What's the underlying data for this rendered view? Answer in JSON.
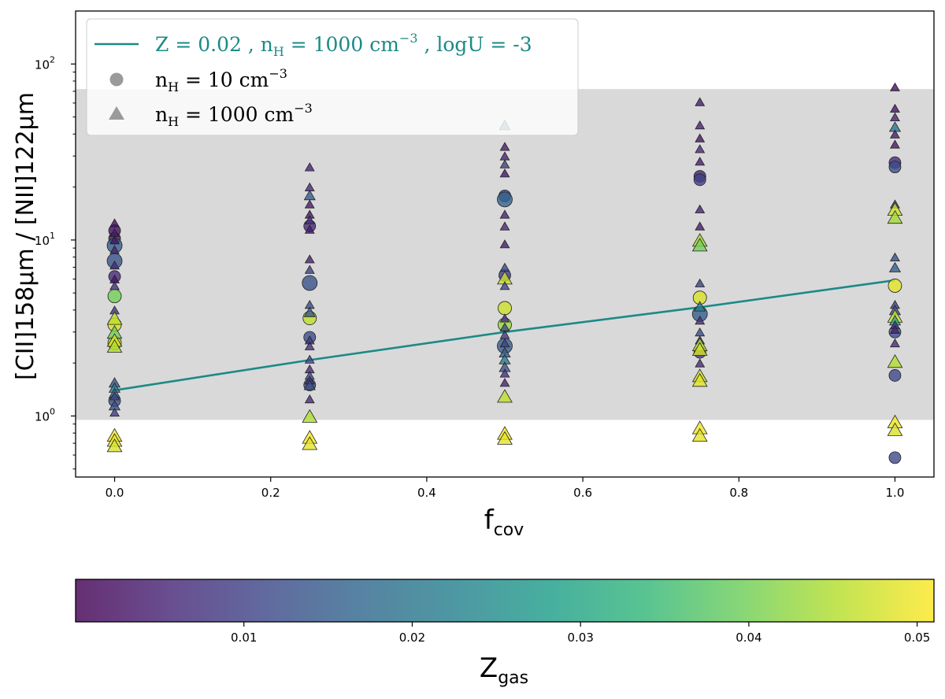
{
  "chart_data": [
    {
      "type": "scatter",
      "title": "",
      "xlabel": "f",
      "xlabel_sub": "cov",
      "ylabel": "[CII]158μm / [NII]122μm",
      "xlim": [
        -0.05,
        1.05
      ],
      "ylim": [
        0.45,
        200
      ],
      "yscale": "log",
      "x_ticks": [
        0.0,
        0.2,
        0.4,
        0.6,
        0.8,
        1.0
      ],
      "x_tick_labels": [
        "0.0",
        "0.2",
        "0.4",
        "0.6",
        "0.8",
        "1.0"
      ],
      "y_ticks": [
        1,
        10,
        100
      ],
      "y_tick_labels": [
        "10",
        "10",
        "10"
      ],
      "y_tick_exponents": [
        "0",
        "1",
        "2"
      ],
      "shaded_band": {
        "y_min": 0.95,
        "y_max": 72,
        "color": "#d9d9d9"
      },
      "legend_position": "upper-left",
      "legend": [
        {
          "marker": "line",
          "color": "#1b8a87",
          "text": "Z = 0.02 , n",
          "sub": "H",
          "mid": " = 1000 cm",
          "sup": "−3",
          "tail": " , logU = -3"
        },
        {
          "marker": "circle",
          "color": "#9a9a9a",
          "text": "n",
          "sub": "H",
          "mid": " = 10 cm",
          "sup": "−3",
          "tail": ""
        },
        {
          "marker": "triangle",
          "color": "#9a9a9a",
          "text": "n",
          "sub": "H",
          "mid": " = 1000 cm",
          "sup": "−3",
          "tail": ""
        }
      ],
      "reference_line": {
        "name": "Z = 0.02 , nH = 1000 cm−3 , logU = -3",
        "color": "#1b8a87",
        "x": [
          0.0,
          0.25,
          0.5,
          0.75,
          1.0
        ],
        "y": [
          1.4,
          2.08,
          3.0,
          4.15,
          5.9
        ]
      },
      "series": [
        {
          "marker": "circle",
          "points": [
            {
              "x": 0.0,
              "y": 11.3,
              "z": 0.002
            },
            {
              "x": 0.0,
              "y": 10.2,
              "z": 0.004
            },
            {
              "x": 0.0,
              "y": 9.3,
              "z": 0.015
            },
            {
              "x": 0.0,
              "y": 7.6,
              "z": 0.013
            },
            {
              "x": 0.0,
              "y": 6.2,
              "z": 0.006
            },
            {
              "x": 0.0,
              "y": 4.8,
              "z": 0.04
            },
            {
              "x": 0.0,
              "y": 3.3,
              "z": 0.048
            },
            {
              "x": 0.0,
              "y": 2.6,
              "z": 0.046
            },
            {
              "x": 0.0,
              "y": 1.22,
              "z": 0.012
            },
            {
              "x": 0.25,
              "y": 12.0,
              "z": 0.006
            },
            {
              "x": 0.25,
              "y": 5.7,
              "z": 0.013
            },
            {
              "x": 0.25,
              "y": 3.6,
              "z": 0.046
            },
            {
              "x": 0.25,
              "y": 2.8,
              "z": 0.012
            },
            {
              "x": 0.25,
              "y": 1.5,
              "z": 0.01
            },
            {
              "x": 0.5,
              "y": 17.8,
              "z": 0.01
            },
            {
              "x": 0.5,
              "y": 17.0,
              "z": 0.016
            },
            {
              "x": 0.5,
              "y": 4.1,
              "z": 0.047
            },
            {
              "x": 0.5,
              "y": 3.3,
              "z": 0.043
            },
            {
              "x": 0.5,
              "y": 2.5,
              "z": 0.015
            },
            {
              "x": 0.5,
              "y": 6.3,
              "z": 0.009
            },
            {
              "x": 0.75,
              "y": 23.0,
              "z": 0.005
            },
            {
              "x": 0.75,
              "y": 22.0,
              "z": 0.01
            },
            {
              "x": 0.75,
              "y": 4.7,
              "z": 0.048
            },
            {
              "x": 0.75,
              "y": 3.8,
              "z": 0.015
            },
            {
              "x": 0.75,
              "y": 2.3,
              "z": 0.009
            },
            {
              "x": 1.0,
              "y": 27.5,
              "z": 0.006
            },
            {
              "x": 1.0,
              "y": 26.0,
              "z": 0.012
            },
            {
              "x": 1.0,
              "y": 5.5,
              "z": 0.049
            },
            {
              "x": 1.0,
              "y": 3.0,
              "z": 0.012
            },
            {
              "x": 1.0,
              "y": 1.7,
              "z": 0.011
            },
            {
              "x": 1.0,
              "y": 0.58,
              "z": 0.011
            }
          ]
        },
        {
          "marker": "triangle",
          "points": [
            {
              "x": 0.0,
              "y": 12.5,
              "z": 0.002
            },
            {
              "x": 0.0,
              "y": 11.0,
              "z": 0.004
            },
            {
              "x": 0.0,
              "y": 10.0,
              "z": 0.003
            },
            {
              "x": 0.0,
              "y": 8.8,
              "z": 0.005
            },
            {
              "x": 0.0,
              "y": 7.2,
              "z": 0.006
            },
            {
              "x": 0.0,
              "y": 6.0,
              "z": 0.003
            },
            {
              "x": 0.0,
              "y": 5.5,
              "z": 0.007
            },
            {
              "x": 0.0,
              "y": 4.0,
              "z": 0.008
            },
            {
              "x": 0.0,
              "y": 3.6,
              "z": 0.046
            },
            {
              "x": 0.0,
              "y": 3.0,
              "z": 0.04
            },
            {
              "x": 0.0,
              "y": 2.7,
              "z": 0.048
            },
            {
              "x": 0.0,
              "y": 2.5,
              "z": 0.045
            },
            {
              "x": 0.0,
              "y": 1.55,
              "z": 0.014
            },
            {
              "x": 0.0,
              "y": 1.45,
              "z": 0.02
            },
            {
              "x": 0.0,
              "y": 1.35,
              "z": 0.018
            },
            {
              "x": 0.0,
              "y": 1.3,
              "z": 0.011
            },
            {
              "x": 0.0,
              "y": 1.15,
              "z": 0.013
            },
            {
              "x": 0.0,
              "y": 1.05,
              "z": 0.009
            },
            {
              "x": 0.0,
              "y": 0.78,
              "z": 0.05
            },
            {
              "x": 0.0,
              "y": 0.73,
              "z": 0.049
            },
            {
              "x": 0.0,
              "y": 0.68,
              "z": 0.048
            },
            {
              "x": 0.25,
              "y": 26.0,
              "z": 0.005
            },
            {
              "x": 0.25,
              "y": 20.0,
              "z": 0.006
            },
            {
              "x": 0.25,
              "y": 18.0,
              "z": 0.015
            },
            {
              "x": 0.25,
              "y": 16.0,
              "z": 0.004
            },
            {
              "x": 0.25,
              "y": 14.0,
              "z": 0.003
            },
            {
              "x": 0.25,
              "y": 13.0,
              "z": 0.007
            },
            {
              "x": 0.25,
              "y": 11.5,
              "z": 0.004
            },
            {
              "x": 0.25,
              "y": 7.8,
              "z": 0.005
            },
            {
              "x": 0.25,
              "y": 6.8,
              "z": 0.01
            },
            {
              "x": 0.25,
              "y": 4.3,
              "z": 0.012
            },
            {
              "x": 0.25,
              "y": 3.9,
              "z": 0.014
            },
            {
              "x": 0.25,
              "y": 2.7,
              "z": 0.009
            },
            {
              "x": 0.25,
              "y": 2.5,
              "z": 0.007
            },
            {
              "x": 0.25,
              "y": 2.1,
              "z": 0.011
            },
            {
              "x": 0.25,
              "y": 1.85,
              "z": 0.006
            },
            {
              "x": 0.25,
              "y": 1.7,
              "z": 0.012
            },
            {
              "x": 0.25,
              "y": 1.6,
              "z": 0.008
            },
            {
              "x": 0.25,
              "y": 1.5,
              "z": 0.013
            },
            {
              "x": 0.25,
              "y": 1.25,
              "z": 0.006
            },
            {
              "x": 0.25,
              "y": 1.0,
              "z": 0.045
            },
            {
              "x": 0.25,
              "y": 0.76,
              "z": 0.05
            },
            {
              "x": 0.25,
              "y": 0.7,
              "z": 0.049
            },
            {
              "x": 0.5,
              "y": 45.0,
              "z": 0.018
            },
            {
              "x": 0.5,
              "y": 34.0,
              "z": 0.004
            },
            {
              "x": 0.5,
              "y": 30.0,
              "z": 0.005
            },
            {
              "x": 0.5,
              "y": 27.0,
              "z": 0.01
            },
            {
              "x": 0.5,
              "y": 24.0,
              "z": 0.003
            },
            {
              "x": 0.5,
              "y": 14.0,
              "z": 0.005
            },
            {
              "x": 0.5,
              "y": 12.0,
              "z": 0.006
            },
            {
              "x": 0.5,
              "y": 9.5,
              "z": 0.004
            },
            {
              "x": 0.5,
              "y": 7.0,
              "z": 0.012
            },
            {
              "x": 0.5,
              "y": 6.1,
              "z": 0.047
            },
            {
              "x": 0.5,
              "y": 5.5,
              "z": 0.011
            },
            {
              "x": 0.5,
              "y": 3.6,
              "z": 0.006
            },
            {
              "x": 0.5,
              "y": 3.2,
              "z": 0.012
            },
            {
              "x": 0.5,
              "y": 2.9,
              "z": 0.008
            },
            {
              "x": 0.5,
              "y": 2.6,
              "z": 0.01
            },
            {
              "x": 0.5,
              "y": 2.3,
              "z": 0.015
            },
            {
              "x": 0.5,
              "y": 2.1,
              "z": 0.021
            },
            {
              "x": 0.5,
              "y": 1.9,
              "z": 0.013
            },
            {
              "x": 0.5,
              "y": 1.75,
              "z": 0.007
            },
            {
              "x": 0.5,
              "y": 1.55,
              "z": 0.005
            },
            {
              "x": 0.5,
              "y": 1.3,
              "z": 0.046
            },
            {
              "x": 0.5,
              "y": 0.8,
              "z": 0.05
            },
            {
              "x": 0.5,
              "y": 0.75,
              "z": 0.049
            },
            {
              "x": 0.75,
              "y": 61.0,
              "z": 0.004
            },
            {
              "x": 0.75,
              "y": 45.0,
              "z": 0.005
            },
            {
              "x": 0.75,
              "y": 38.0,
              "z": 0.003
            },
            {
              "x": 0.75,
              "y": 33.0,
              "z": 0.006
            },
            {
              "x": 0.75,
              "y": 28.0,
              "z": 0.004
            },
            {
              "x": 0.75,
              "y": 15.0,
              "z": 0.005
            },
            {
              "x": 0.75,
              "y": 12.0,
              "z": 0.004
            },
            {
              "x": 0.75,
              "y": 10.0,
              "z": 0.045
            },
            {
              "x": 0.75,
              "y": 9.4,
              "z": 0.04
            },
            {
              "x": 0.75,
              "y": 5.7,
              "z": 0.01
            },
            {
              "x": 0.75,
              "y": 4.2,
              "z": 0.022
            },
            {
              "x": 0.75,
              "y": 3.5,
              "z": 0.007
            },
            {
              "x": 0.75,
              "y": 3.0,
              "z": 0.012
            },
            {
              "x": 0.75,
              "y": 2.7,
              "z": 0.008
            },
            {
              "x": 0.75,
              "y": 2.55,
              "z": 0.045
            },
            {
              "x": 0.75,
              "y": 2.4,
              "z": 0.048
            },
            {
              "x": 0.75,
              "y": 2.0,
              "z": 0.006
            },
            {
              "x": 0.75,
              "y": 1.7,
              "z": 0.047
            },
            {
              "x": 0.75,
              "y": 1.6,
              "z": 0.049
            },
            {
              "x": 0.75,
              "y": 0.86,
              "z": 0.05
            },
            {
              "x": 0.75,
              "y": 0.78,
              "z": 0.049
            },
            {
              "x": 1.0,
              "y": 74.0,
              "z": 0.002
            },
            {
              "x": 1.0,
              "y": 56.0,
              "z": 0.003
            },
            {
              "x": 1.0,
              "y": 50.0,
              "z": 0.005
            },
            {
              "x": 1.0,
              "y": 44.0,
              "z": 0.02
            },
            {
              "x": 1.0,
              "y": 40.0,
              "z": 0.004
            },
            {
              "x": 1.0,
              "y": 35.0,
              "z": 0.003
            },
            {
              "x": 1.0,
              "y": 16.0,
              "z": 0.006
            },
            {
              "x": 1.0,
              "y": 15.0,
              "z": 0.047
            },
            {
              "x": 1.0,
              "y": 13.5,
              "z": 0.044
            },
            {
              "x": 1.0,
              "y": 8.0,
              "z": 0.012
            },
            {
              "x": 1.0,
              "y": 7.0,
              "z": 0.015
            },
            {
              "x": 1.0,
              "y": 4.3,
              "z": 0.009
            },
            {
              "x": 1.0,
              "y": 4.0,
              "z": 0.013
            },
            {
              "x": 1.0,
              "y": 3.7,
              "z": 0.047
            },
            {
              "x": 1.0,
              "y": 3.5,
              "z": 0.03
            },
            {
              "x": 1.0,
              "y": 3.3,
              "z": 0.008
            },
            {
              "x": 1.0,
              "y": 3.1,
              "z": 0.005
            },
            {
              "x": 1.0,
              "y": 2.6,
              "z": 0.006
            },
            {
              "x": 1.0,
              "y": 2.05,
              "z": 0.045
            },
            {
              "x": 1.0,
              "y": 0.93,
              "z": 0.05
            },
            {
              "x": 1.0,
              "y": 0.84,
              "z": 0.048
            }
          ]
        }
      ]
    },
    {
      "type": "colorbar",
      "label": "Z",
      "label_sub": "gas",
      "range": [
        0.0,
        0.051
      ],
      "ticks": [
        0.01,
        0.02,
        0.03,
        0.04,
        0.05
      ],
      "tick_labels": [
        "0.01",
        "0.02",
        "0.03",
        "0.04",
        "0.05"
      ],
      "colormap_stops": [
        "#440154",
        "#482878",
        "#3e4989",
        "#31688e",
        "#26828e",
        "#1f9e89",
        "#35b779",
        "#6ece58",
        "#b5de2b",
        "#fde725"
      ]
    }
  ]
}
